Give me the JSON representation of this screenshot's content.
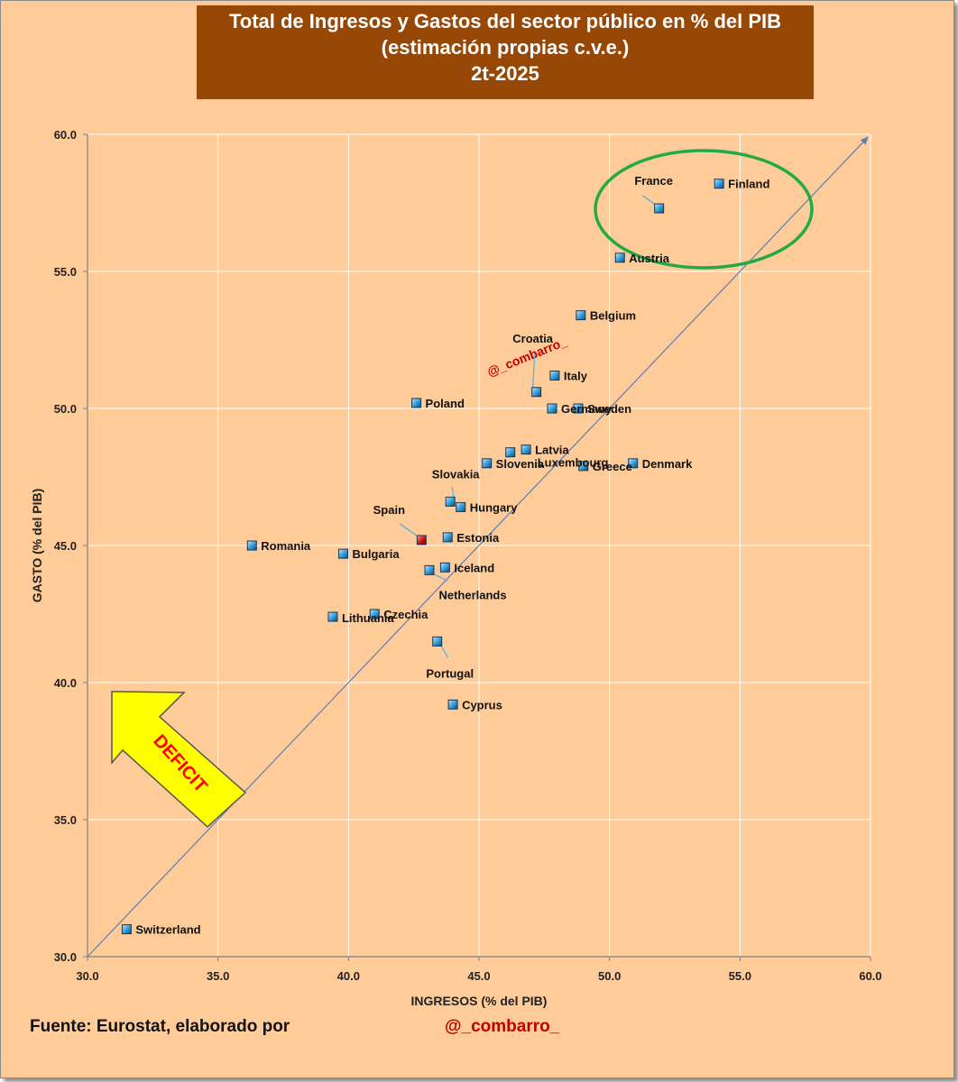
{
  "title_lines": [
    "Total de Ingresos y Gastos del sector público en % del PIB",
    "(estimación propias c.v.e.)",
    "2t-2025"
  ],
  "footer": {
    "source": "Fuente:  Eurostat, elaborado por",
    "author": "@_combarro_"
  },
  "watermark": "@_combarro_",
  "arrow_label": "DEFICIT",
  "colors": {
    "background": "#ffcc99",
    "title_bg": "#974706",
    "point": "#2e9ad6",
    "highlight_point": "#c00000",
    "ellipse": "#22aa44",
    "arrow_fill": "#ffff00",
    "arrow_text": "#ff0000",
    "diagonal": "#5a7fb5"
  },
  "chart_data": {
    "type": "scatter",
    "xlabel": "INGRESOS  (% del PIB)",
    "ylabel": "GASTO  (% del PIB)",
    "xlim": [
      30,
      60
    ],
    "ylim": [
      30,
      60
    ],
    "xticks": [
      "30.0",
      "35.0",
      "40.0",
      "45.0",
      "50.0",
      "55.0",
      "60.0"
    ],
    "yticks": [
      "30.0",
      "35.0",
      "40.0",
      "45.0",
      "50.0",
      "55.0",
      "60.0"
    ],
    "grid": true,
    "reference_line": "y = x",
    "points": [
      {
        "label": "France",
        "x": 51.9,
        "y": 57.3
      },
      {
        "label": "Finland",
        "x": 54.2,
        "y": 58.2
      },
      {
        "label": "Austria",
        "x": 50.4,
        "y": 55.5
      },
      {
        "label": "Belgium",
        "x": 48.9,
        "y": 53.4
      },
      {
        "label": "Croatia",
        "x": 47.2,
        "y": 50.6
      },
      {
        "label": "Italy",
        "x": 47.9,
        "y": 51.2
      },
      {
        "label": "Poland",
        "x": 42.6,
        "y": 50.2
      },
      {
        "label": "Germany",
        "x": 47.8,
        "y": 50.0
      },
      {
        "label": "Sweden",
        "x": 48.8,
        "y": 50.0
      },
      {
        "label": "Latvia",
        "x": 46.8,
        "y": 48.5
      },
      {
        "label": "Slovenia",
        "x": 45.3,
        "y": 48.0
      },
      {
        "label": "Luxembourg",
        "x": 46.2,
        "y": 48.4
      },
      {
        "label": "Greece",
        "x": 49.0,
        "y": 47.9
      },
      {
        "label": "Denmark",
        "x": 50.9,
        "y": 48.0
      },
      {
        "label": "Slovakia",
        "x": 43.9,
        "y": 46.6
      },
      {
        "label": "Hungary",
        "x": 44.3,
        "y": 46.4
      },
      {
        "label": "Spain",
        "x": 42.8,
        "y": 45.2,
        "highlight": true
      },
      {
        "label": "Estonia",
        "x": 43.8,
        "y": 45.3
      },
      {
        "label": "Romania",
        "x": 36.3,
        "y": 45.0
      },
      {
        "label": "Bulgaria",
        "x": 39.8,
        "y": 44.7
      },
      {
        "label": "Iceland",
        "x": 43.7,
        "y": 44.2
      },
      {
        "label": "Netherlands",
        "x": 43.1,
        "y": 44.1
      },
      {
        "label": "Lithuania",
        "x": 39.4,
        "y": 42.4
      },
      {
        "label": "Czechia",
        "x": 41.0,
        "y": 42.5
      },
      {
        "label": "Portugal",
        "x": 43.4,
        "y": 41.5
      },
      {
        "label": "Cyprus",
        "x": 44.0,
        "y": 39.2
      },
      {
        "label": "Switzerland",
        "x": 31.5,
        "y": 31.0
      }
    ]
  }
}
